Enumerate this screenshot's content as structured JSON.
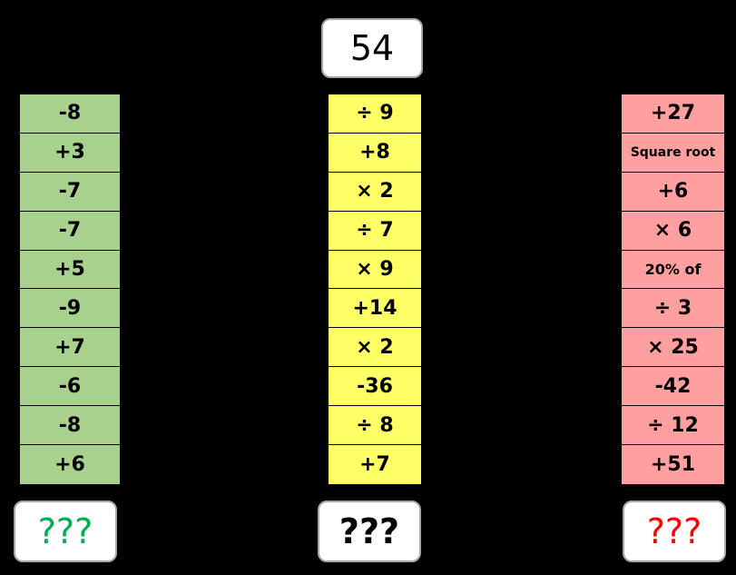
{
  "start_number": "54",
  "columns": {
    "green": {
      "color": "#a9d18e",
      "operations": [
        "-8",
        "+3",
        "-7",
        "-7",
        "+5",
        "-9",
        "+7",
        "-6",
        "-8",
        "+6"
      ],
      "answer": "???",
      "answer_color": "#00b050"
    },
    "yellow": {
      "color": "#ffff66",
      "operations": [
        "÷ 9",
        "+8",
        "× 2",
        "÷ 7",
        "× 9",
        "+14",
        "× 2",
        "-36",
        "÷ 8",
        "+7"
      ],
      "answer": "???",
      "answer_color": "#000000"
    },
    "red": {
      "color": "#ff9f9f",
      "operations": [
        "+27",
        "Square root",
        "+6",
        "× 6",
        "20% of",
        " ÷ 3",
        "× 25",
        "-42",
        "÷ 12",
        "+51"
      ],
      "answer": "???",
      "answer_color": "#ff0000"
    }
  }
}
